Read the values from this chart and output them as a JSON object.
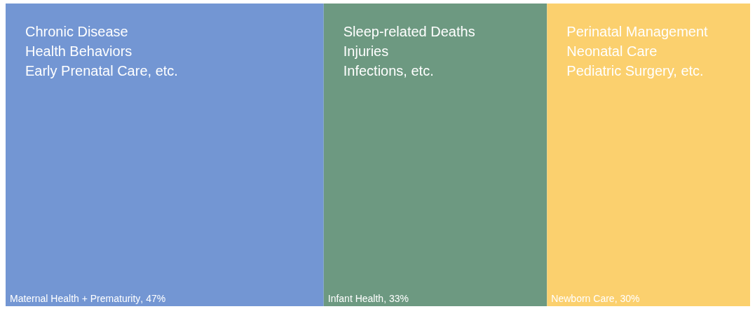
{
  "chart_data": {
    "type": "other",
    "categories": [
      "Maternal Health + Prematurity",
      "Infant Health",
      "Newborn Care"
    ],
    "values": [
      47,
      33,
      30
    ],
    "value_labels": [
      ", 47%",
      ", 33%",
      ", 30%"
    ],
    "colors": [
      "#7396d3",
      "#6d9981",
      "#fbd06e"
    ],
    "annotations": [
      "Chronic Disease\nHealth Behaviors\nEarly Prenatal Care, etc.",
      "Sleep-related Deaths\nInjuries\nInfections, etc.",
      "Perinatal Management\nNeonatal Care\nPediatric Surgery, etc."
    ]
  }
}
